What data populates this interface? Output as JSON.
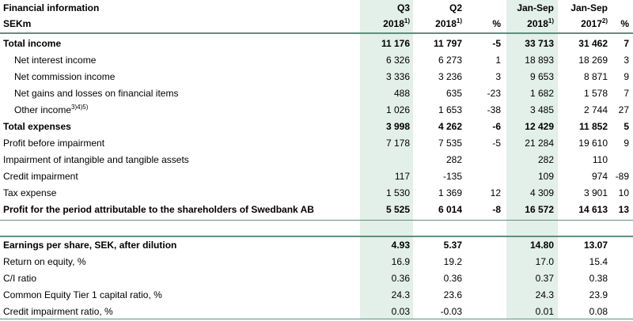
{
  "header": {
    "title": "Financial information",
    "unit": "SEKm",
    "columns": [
      {
        "period": "Q3",
        "year": "2018",
        "note": "1)"
      },
      {
        "period": "Q2",
        "year": "2018",
        "note": "1)"
      },
      {
        "year": "%"
      },
      {
        "period": "Jan-Sep",
        "year": "2018",
        "note": "1)"
      },
      {
        "period": "Jan-Sep",
        "year": "2017",
        "note": "2)"
      },
      {
        "year": "%"
      }
    ]
  },
  "sections": [
    {
      "rows": [
        {
          "label": "Total income",
          "bold": true,
          "cells": [
            "11 176",
            "11 797",
            "-5",
            "33 713",
            "31 462",
            "7"
          ]
        },
        {
          "label": "Net interest income",
          "indent": true,
          "cells": [
            "6 326",
            "6 273",
            "1",
            "18 893",
            "18 269",
            "3"
          ]
        },
        {
          "label": "Net commission income",
          "indent": true,
          "cells": [
            "3 336",
            "3 236",
            "3",
            "9 653",
            "8 871",
            "9"
          ]
        },
        {
          "label": "Net gains and losses on financial items",
          "indent": true,
          "cells": [
            "488",
            "635",
            "-23",
            "1 682",
            "1 578",
            "7"
          ]
        },
        {
          "label": "Other income",
          "note": "3)4)5)",
          "indent": true,
          "cells": [
            "1 026",
            "1 653",
            "-38",
            "3 485",
            "2 744",
            "27"
          ]
        },
        {
          "label": "Total expenses",
          "bold": true,
          "cells": [
            "3 998",
            "4 262",
            "-6",
            "12 429",
            "11 852",
            "5"
          ]
        },
        {
          "label": "Profit before impairment",
          "cells": [
            "7 178",
            "7 535",
            "-5",
            "21 284",
            "19 610",
            "9"
          ]
        },
        {
          "label": "Impairment of intangible and tangible assets",
          "cells": [
            null,
            "282",
            null,
            "282",
            "110",
            null
          ]
        },
        {
          "label": "Credit impairment",
          "cells": [
            "117",
            "-135",
            null,
            "109",
            "974",
            "-89"
          ]
        },
        {
          "label": "Tax expense",
          "cells": [
            "1 530",
            "1 369",
            "12",
            "4 309",
            "3 901",
            "10"
          ]
        },
        {
          "label": "Profit for the period attributable to the shareholders of Swedbank AB",
          "bold": true,
          "cells": [
            "5 525",
            "6 014",
            "-8",
            "16 572",
            "14 613",
            "13"
          ]
        }
      ]
    },
    {
      "rows": [
        {
          "label": "Earnings per share, SEK, after dilution",
          "bold": true,
          "cells": [
            "4.93",
            "5.37",
            null,
            "14.80",
            "13.07",
            null
          ]
        },
        {
          "label": "Return on equity, %",
          "cells": [
            "16.9",
            "19.2",
            null,
            "17.0",
            "15.4",
            null
          ]
        },
        {
          "label": "C/I ratio",
          "cells": [
            "0.36",
            "0.36",
            null,
            "0.37",
            "0.38",
            null
          ]
        },
        {
          "label": "Common Equity Tier 1 capital ratio, %",
          "cells": [
            "24.3",
            "23.6",
            null,
            "24.3",
            "23.9",
            null
          ]
        },
        {
          "label": "Credit impairment ratio, %",
          "cells": [
            "0.03",
            "-0.03",
            null,
            "0.01",
            "0.08",
            null
          ]
        }
      ]
    }
  ]
}
